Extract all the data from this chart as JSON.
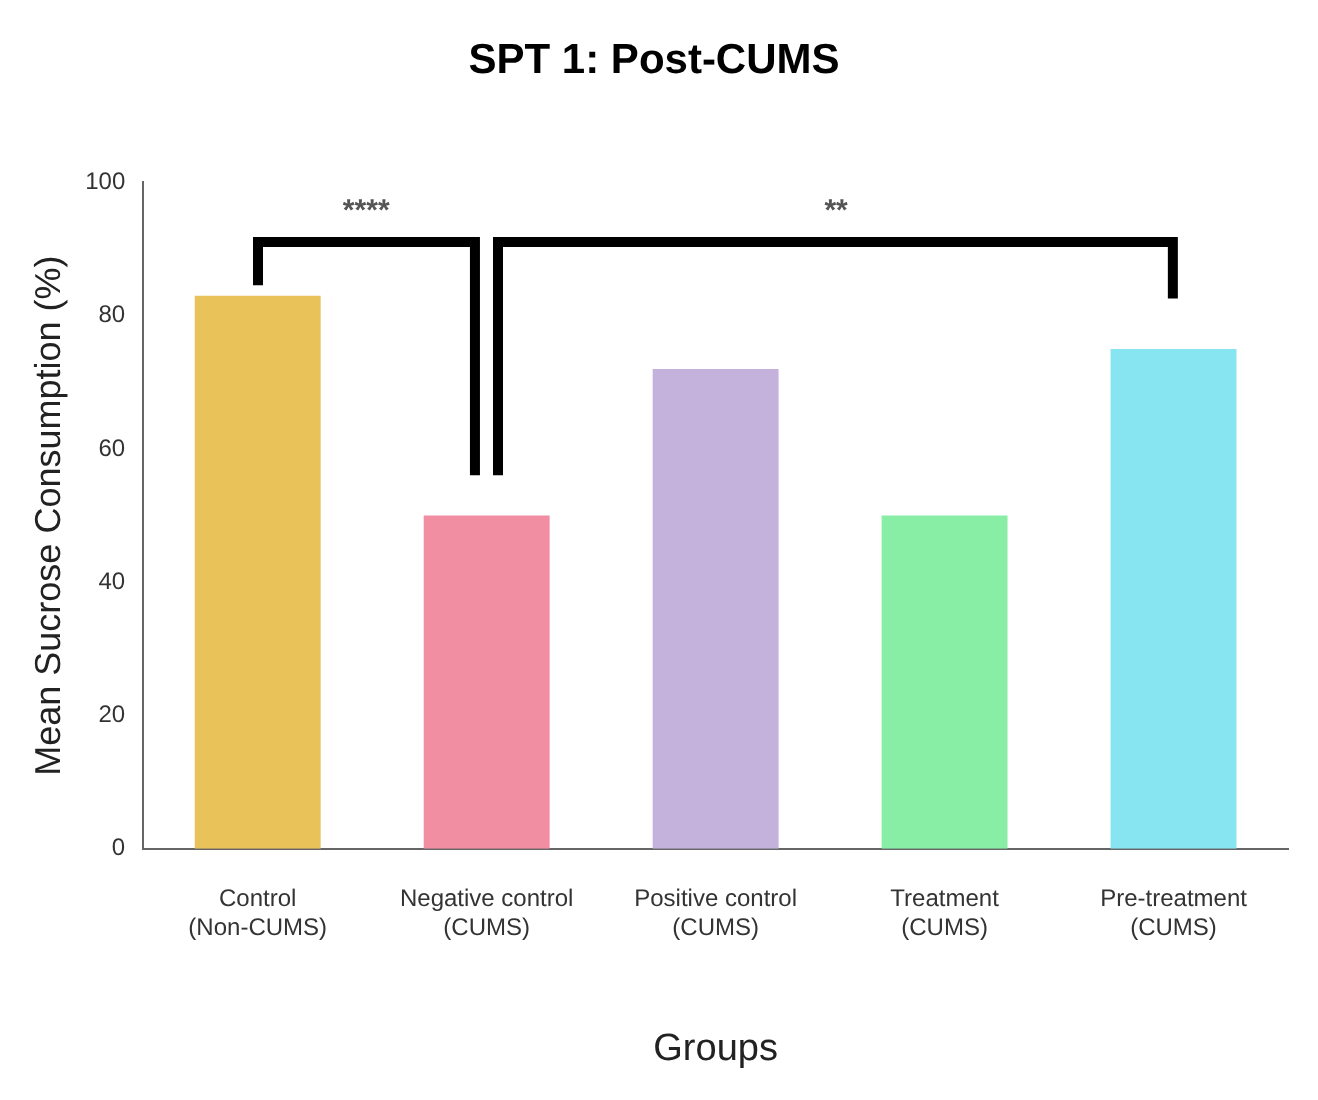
{
  "chart_data": {
    "type": "bar",
    "title": "SPT 1: Post-CUMS",
    "xlabel": "Groups",
    "ylabel": "Mean Sucrose Consumption (%)",
    "categories": [
      "Control\n(Non-CUMS)",
      "Negative control\n(CUMS)",
      "Positive control\n(CUMS)",
      "Treatment\n(CUMS)",
      "Pre-treatment\n(CUMS)"
    ],
    "values": [
      83,
      50,
      72,
      50,
      75
    ],
    "colors": [
      "#e9c25a",
      "#f28ea2",
      "#c4b2dc",
      "#88eea6",
      "#86e5f0"
    ],
    "ylim": [
      0,
      100
    ],
    "yticks": [
      0,
      20,
      40,
      60,
      80,
      100
    ],
    "grid": false,
    "legend": false,
    "annotations": [
      "****",
      "**"
    ]
  }
}
